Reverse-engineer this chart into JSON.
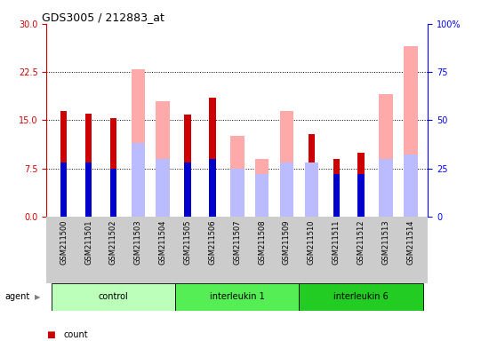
{
  "title": "GDS3005 / 212883_at",
  "samples": [
    "GSM211500",
    "GSM211501",
    "GSM211502",
    "GSM211503",
    "GSM211504",
    "GSM211505",
    "GSM211506",
    "GSM211507",
    "GSM211508",
    "GSM211509",
    "GSM211510",
    "GSM211511",
    "GSM211512",
    "GSM211513",
    "GSM211514"
  ],
  "groups": [
    {
      "label": "control",
      "color": "#bbffbb",
      "start": 0,
      "end": 4
    },
    {
      "label": "interleukin 1",
      "color": "#55ee55",
      "start": 5,
      "end": 9
    },
    {
      "label": "interleukin 6",
      "color": "#22cc22",
      "start": 10,
      "end": 14
    }
  ],
  "left_ylim": [
    0,
    30
  ],
  "right_ylim": [
    0,
    100
  ],
  "left_yticks": [
    0,
    7.5,
    15,
    22.5,
    30
  ],
  "right_yticks": [
    0,
    25,
    50,
    75,
    100
  ],
  "dotted_lines": [
    7.5,
    15,
    22.5
  ],
  "count_color": "#cc0000",
  "rank_color": "#0000cc",
  "absent_value_color": "#ffaaaa",
  "absent_rank_color": "#bbbbff",
  "count_values": [
    16.5,
    16.0,
    15.3,
    null,
    null,
    15.9,
    18.5,
    null,
    null,
    null,
    12.8,
    9.0,
    10.0,
    null,
    null
  ],
  "rank_values_pct": [
    28.0,
    28.0,
    25.0,
    null,
    null,
    28.0,
    30.0,
    null,
    null,
    null,
    null,
    22.0,
    22.0,
    null,
    null
  ],
  "absent_value_values": [
    null,
    null,
    null,
    23.0,
    18.0,
    null,
    null,
    12.5,
    9.0,
    16.5,
    null,
    null,
    null,
    19.0,
    26.5
  ],
  "absent_rank_pct": [
    null,
    null,
    null,
    38.0,
    30.0,
    null,
    null,
    25.0,
    22.0,
    28.0,
    28.0,
    null,
    null,
    30.0,
    32.0
  ],
  "background_color": "#ffffff",
  "tick_area_color": "#cccccc",
  "fig_width": 5.5,
  "fig_height": 3.84
}
